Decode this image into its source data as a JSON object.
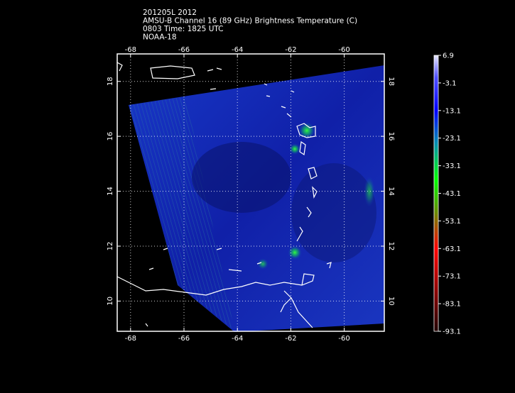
{
  "header": {
    "lines": [
      "201205L 2012",
      "AMSU-B Channel 16 (89 GHz) Brightness Temperature (C)",
      "0803 Time: 1825 UTC",
      "NOAA-18"
    ]
  },
  "map": {
    "xlim": [
      -68.5,
      -58.5
    ],
    "ylim": [
      8.9,
      19.0
    ],
    "xticks": [
      -68,
      -66,
      -64,
      -62,
      -60
    ],
    "yticks": [
      10,
      12,
      14,
      16,
      18
    ]
  },
  "colorbar": {
    "lim": [
      -93.1,
      6.9
    ],
    "ticks": [
      6.9,
      -3.1,
      -13.1,
      -23.1,
      -33.1,
      -43.1,
      -53.1,
      -63.1,
      -73.1,
      -83.1,
      -93.1
    ]
  }
}
